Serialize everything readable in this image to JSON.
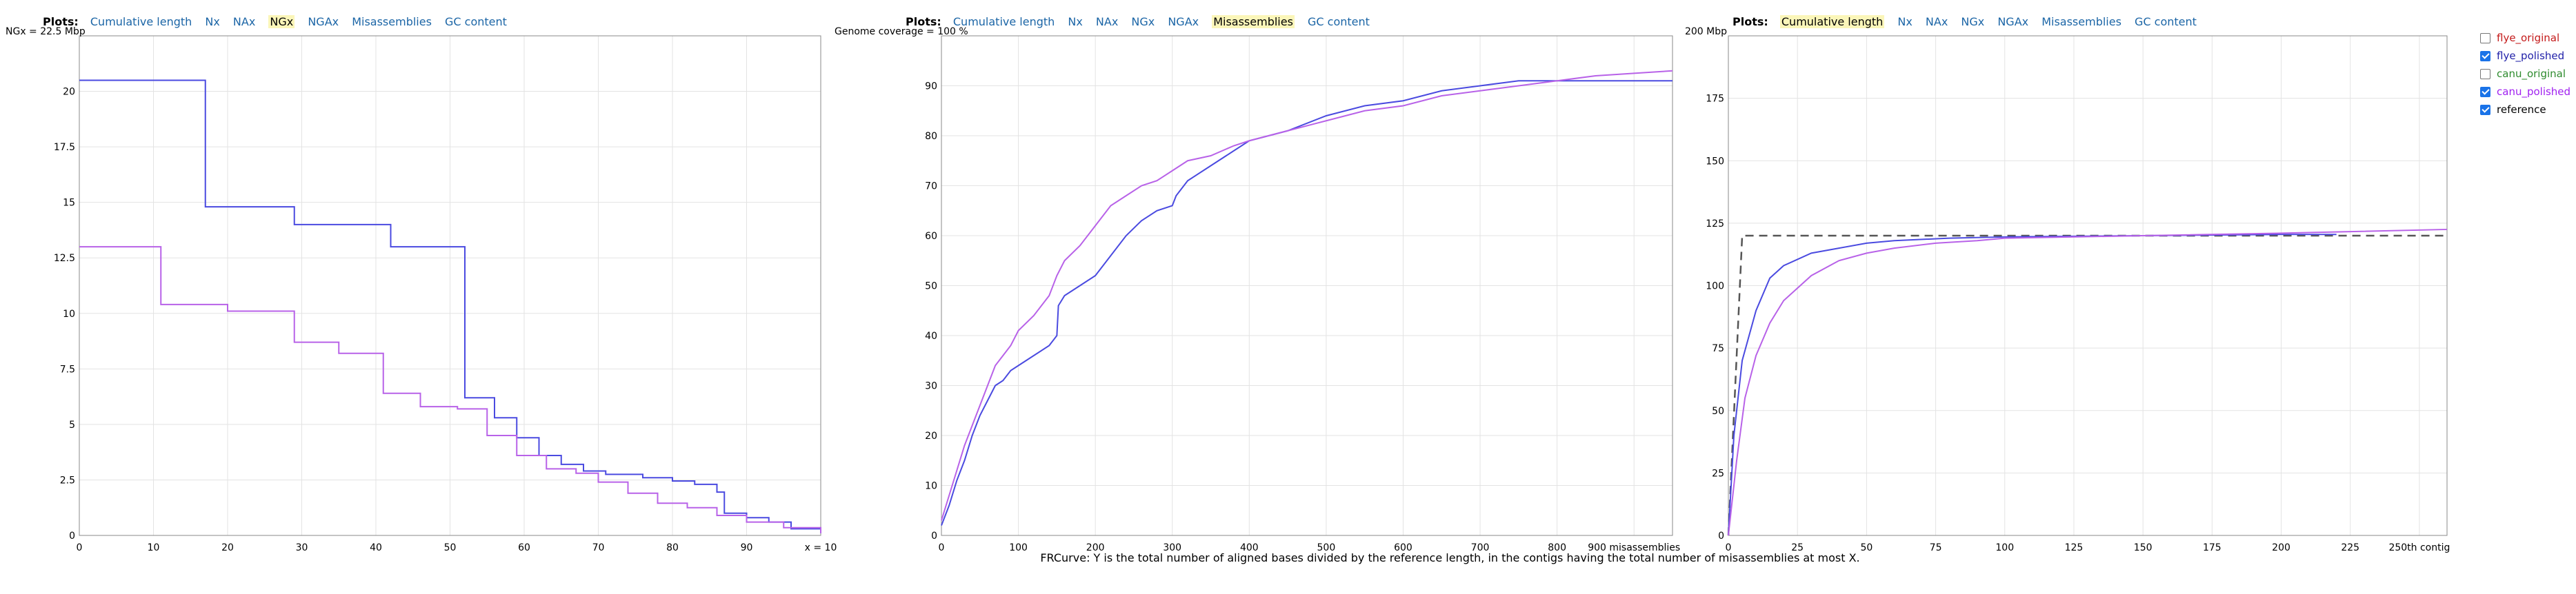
{
  "plots_label": "Plots:",
  "tabs": [
    "Cumulative length",
    "Nx",
    "NAx",
    "NGx",
    "NGAx",
    "Misassemblies",
    "GC content"
  ],
  "legend": [
    {
      "label": "flye_original",
      "color": "#c41a1a",
      "checked": false
    },
    {
      "label": "flye_polished",
      "color": "#1f1fa8",
      "checked": true
    },
    {
      "label": "canu_original",
      "color": "#2e8b2e",
      "checked": false
    },
    {
      "label": "canu_polished",
      "color": "#a020f0",
      "checked": true
    },
    {
      "label": "reference",
      "color": "#000000",
      "checked": true
    }
  ],
  "caption": "FRCurve: Y is the total number of aligned bases divided by the reference length, in the contigs having the total number of misassemblies at most X.",
  "chart_data": [
    {
      "type": "line",
      "active_tab": "NGx",
      "ytitle": "NGx = 22.5 Mbp",
      "xlim": [
        0,
        100
      ],
      "ylim": [
        0,
        22.5
      ],
      "x_ticks": [
        0,
        10,
        20,
        30,
        40,
        50,
        60,
        70,
        80,
        90
      ],
      "x_tick_labels": [
        "0",
        "10",
        "20",
        "30",
        "40",
        "50",
        "60",
        "70",
        "80",
        "90"
      ],
      "x_end_label": "x = 10",
      "y_ticks": [
        0,
        2.5,
        5,
        7.5,
        10,
        12.5,
        15,
        17.5,
        20
      ],
      "y_tick_labels": [
        "0",
        "2.5",
        "5",
        "7.5",
        "10",
        "12.5",
        "15",
        "17.5",
        "20"
      ],
      "grid": true,
      "series": [
        {
          "name": "flye_polished",
          "color": "#4a4ae0",
          "step": true,
          "x": [
            0,
            17,
            29,
            42,
            52,
            56,
            59,
            62,
            65,
            68,
            71,
            76,
            80,
            83,
            86,
            87,
            90,
            93,
            96,
            100
          ],
          "y": [
            20.5,
            14.8,
            14.0,
            13.0,
            6.2,
            5.3,
            4.4,
            3.6,
            3.2,
            2.9,
            2.75,
            2.6,
            2.45,
            2.3,
            1.95,
            1.0,
            0.8,
            0.6,
            0.3,
            0.1
          ]
        },
        {
          "name": "canu_polished",
          "color": "#b862e8",
          "step": true,
          "x": [
            0,
            11,
            20,
            29,
            35,
            41,
            46,
            51,
            55,
            59,
            63,
            67,
            70,
            74,
            78,
            82,
            86,
            90,
            95,
            100
          ],
          "y": [
            13.0,
            10.4,
            10.1,
            8.7,
            8.2,
            6.4,
            5.8,
            5.7,
            4.5,
            3.6,
            3.0,
            2.8,
            2.4,
            1.9,
            1.45,
            1.25,
            0.9,
            0.6,
            0.35,
            0.1
          ]
        }
      ]
    },
    {
      "type": "line",
      "active_tab": "Misassemblies",
      "ytitle": "Genome coverage = 100 %",
      "xlim": [
        0,
        950
      ],
      "ylim": [
        0,
        100
      ],
      "x_ticks": [
        0,
        100,
        200,
        300,
        400,
        500,
        600,
        700,
        800,
        900
      ],
      "x_tick_labels": [
        "0",
        "100",
        "200",
        "300",
        "400",
        "500",
        "600",
        "700",
        "800",
        "900 misassemblies"
      ],
      "y_ticks": [
        0,
        10,
        20,
        30,
        40,
        50,
        60,
        70,
        80,
        90
      ],
      "y_tick_labels": [
        "0",
        "10",
        "20",
        "30",
        "40",
        "50",
        "60",
        "70",
        "80",
        "90"
      ],
      "grid": true,
      "series": [
        {
          "name": "flye_polished",
          "color": "#4a4ae0",
          "step": false,
          "x": [
            0,
            10,
            20,
            30,
            40,
            50,
            60,
            70,
            80,
            90,
            100,
            120,
            140,
            150,
            152,
            160,
            180,
            200,
            210,
            220,
            240,
            260,
            280,
            300,
            305,
            320,
            350,
            380,
            400,
            450,
            500,
            550,
            600,
            650,
            700,
            750,
            800,
            850,
            900,
            950
          ],
          "y": [
            2,
            6,
            11,
            15,
            20,
            24,
            27,
            30,
            31,
            33,
            34,
            36,
            38,
            40,
            46,
            48,
            50,
            52,
            54,
            56,
            60,
            63,
            65,
            66,
            68,
            71,
            74,
            77,
            79,
            81,
            84,
            86,
            87,
            89,
            90,
            91,
            91,
            91,
            91,
            91
          ]
        },
        {
          "name": "canu_polished",
          "color": "#b862e8",
          "step": false,
          "x": [
            0,
            10,
            20,
            30,
            40,
            50,
            60,
            70,
            80,
            90,
            100,
            120,
            140,
            150,
            160,
            180,
            200,
            220,
            240,
            260,
            280,
            300,
            320,
            350,
            380,
            400,
            450,
            500,
            550,
            600,
            650,
            700,
            750,
            800,
            850,
            900,
            950
          ],
          "y": [
            3,
            8,
            13,
            18,
            22,
            26,
            30,
            34,
            36,
            38,
            41,
            44,
            48,
            52,
            55,
            58,
            62,
            66,
            68,
            70,
            71,
            73,
            75,
            76,
            78,
            79,
            81,
            83,
            85,
            86,
            88,
            89,
            90,
            91,
            92,
            92.5,
            93
          ]
        }
      ]
    },
    {
      "type": "line",
      "active_tab": "Cumulative length",
      "ytitle": "200 Mbp",
      "xlim": [
        0,
        260
      ],
      "ylim": [
        0,
        200
      ],
      "x_ticks": [
        0,
        25,
        50,
        75,
        100,
        125,
        150,
        175,
        200,
        225,
        250
      ],
      "x_tick_labels": [
        "0",
        "25",
        "50",
        "75",
        "100",
        "125",
        "150",
        "175",
        "200",
        "225",
        "250th contig"
      ],
      "y_ticks": [
        0,
        25,
        50,
        75,
        100,
        125,
        150,
        175
      ],
      "y_tick_labels": [
        "0",
        "25",
        "50",
        "75",
        "100",
        "125",
        "150",
        "175"
      ],
      "grid": true,
      "series": [
        {
          "name": "reference",
          "color": "#555555",
          "step": false,
          "dashed": true,
          "x": [
            0,
            5,
            260
          ],
          "y": [
            0,
            120,
            120
          ]
        },
        {
          "name": "flye_polished",
          "color": "#4a4ae0",
          "step": false,
          "x": [
            0,
            2,
            5,
            10,
            15,
            20,
            30,
            40,
            50,
            60,
            80,
            100,
            150,
            200,
            220
          ],
          "y": [
            0,
            40,
            70,
            90,
            103,
            108,
            113,
            115,
            117,
            118,
            119,
            119.5,
            120,
            120.5,
            120.5
          ]
        },
        {
          "name": "canu_polished",
          "color": "#b862e8",
          "step": false,
          "x": [
            0,
            3,
            6,
            10,
            15,
            20,
            30,
            40,
            50,
            60,
            75,
            90,
            100,
            150,
            200,
            260
          ],
          "y": [
            0,
            30,
            55,
            72,
            85,
            94,
            104,
            110,
            113,
            115,
            117,
            118,
            119,
            120,
            121,
            122.5
          ]
        }
      ]
    }
  ]
}
